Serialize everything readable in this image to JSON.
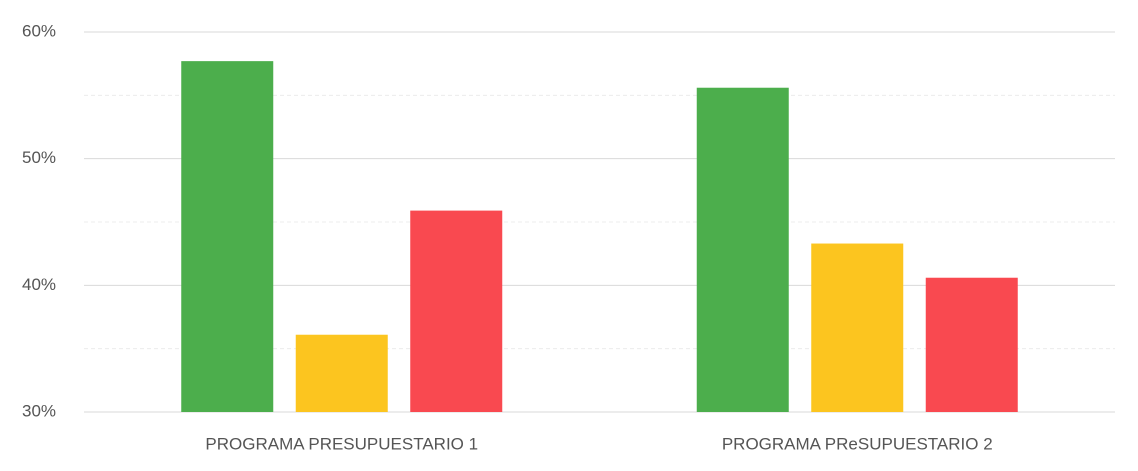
{
  "chart_data": {
    "type": "bar",
    "categories": [
      "PROGRAMA PRESUPUESTARIO 1",
      "PROGRAMA PReSUPUESTARIO 2"
    ],
    "series": [
      {
        "color": "#4cae4c",
        "values": [
          57.7,
          55.6
        ]
      },
      {
        "color": "#fcc51f",
        "values": [
          36.1,
          43.3
        ]
      },
      {
        "color": "#f94950",
        "values": [
          45.9,
          40.6
        ]
      }
    ],
    "ylim": [
      30,
      60
    ],
    "yticks": [
      {
        "value": 30,
        "label": "30%"
      },
      {
        "value": 40,
        "label": "40%"
      },
      {
        "value": 50,
        "label": "50%"
      },
      {
        "value": 60,
        "label": "60%"
      }
    ],
    "minor_yticks": [
      35,
      45,
      55
    ],
    "grid": true
  }
}
